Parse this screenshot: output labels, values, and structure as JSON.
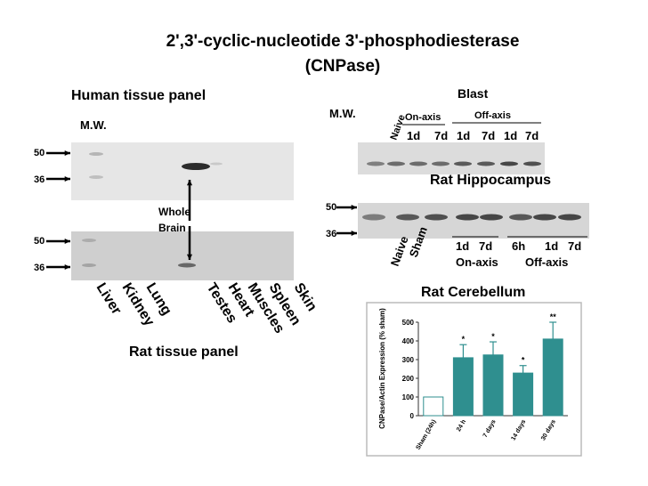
{
  "title": {
    "line1": "2',3'-cyclic-nucleotide 3'-phosphodiesterase",
    "line2": "(CNPase)"
  },
  "human_panel": {
    "title": "Human tissue panel",
    "mw": "M.W.",
    "markers": [
      50,
      36
    ],
    "annotation": [
      "Whole",
      "Brain"
    ]
  },
  "rat_panel": {
    "title": "Rat tissue panel",
    "markers": [
      50,
      36
    ],
    "lanes": [
      "Liver",
      "Kidney",
      "Lung",
      "Testes",
      "Heart",
      "Muscles",
      "Spleen",
      "Skin"
    ]
  },
  "hippocampus": {
    "title": "Rat Hippocampus",
    "header": "Blast",
    "mw": "M.W.",
    "naive": "Naive",
    "groups": [
      {
        "label": "On-axis",
        "lanes": [
          "1d",
          "7d"
        ]
      },
      {
        "label": "Off-axis",
        "lanes": [
          "1d",
          "7d",
          "1d",
          "7d"
        ]
      }
    ]
  },
  "cerebellum": {
    "title": "Rat Cerebellum",
    "markers": [
      50,
      36
    ],
    "lanes": [
      "Naive",
      "Sham"
    ],
    "groups": [
      {
        "label": "On-axis",
        "lanes": [
          "1d",
          "7d"
        ]
      },
      {
        "label": "Off-axis",
        "lanes": [
          "6h",
          "1d",
          "7d"
        ]
      }
    ]
  },
  "chart_data": {
    "type": "bar",
    "y_label": "CNPase/Actin Expression (% sham)",
    "categories": [
      "Sham (24h)",
      "24 h",
      "7 days",
      "14 days",
      "30 days"
    ],
    "values": [
      100,
      310,
      325,
      228,
      410
    ],
    "errors": [
      null,
      70,
      70,
      40,
      90
    ],
    "annotations": [
      null,
      "*",
      "*",
      "*",
      "**"
    ],
    "colors": [
      "#ffffff",
      "#2f8f8f",
      "#2f8f8f",
      "#2f8f8f",
      "#2f8f8f"
    ],
    "ylim": [
      0,
      500
    ],
    "yticks": [
      0,
      100,
      200,
      300,
      400,
      500
    ]
  }
}
